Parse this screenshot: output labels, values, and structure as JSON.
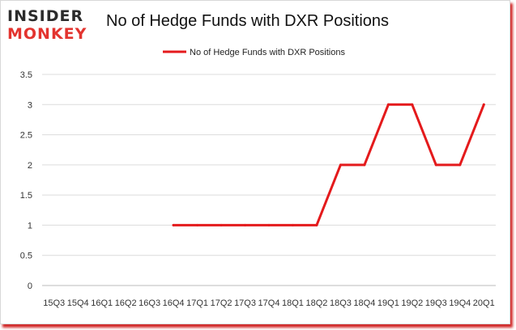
{
  "logo": {
    "line1": "INSIDER",
    "line2": "MONKEY"
  },
  "chart_data": {
    "type": "line",
    "title": "No of Hedge Funds with DXR Positions",
    "xlabel": "",
    "ylabel": "",
    "categories": [
      "15Q3",
      "15Q4",
      "16Q1",
      "16Q2",
      "16Q3",
      "16Q4",
      "17Q1",
      "17Q2",
      "17Q3",
      "17Q4",
      "18Q1",
      "18Q2",
      "18Q3",
      "18Q4",
      "19Q1",
      "19Q2",
      "19Q3",
      "19Q4",
      "20Q1"
    ],
    "series": [
      {
        "name": "No of Hedge Funds with DXR Positions",
        "color": "#e41a1c",
        "values": [
          null,
          null,
          null,
          null,
          null,
          1,
          1,
          1,
          1,
          1,
          1,
          1,
          2,
          2,
          3,
          3,
          2,
          2,
          3
        ]
      }
    ],
    "ylim": [
      0,
      3.5
    ],
    "yticks": [
      0,
      0.5,
      1,
      1.5,
      2,
      2.5,
      3,
      3.5
    ],
    "ytick_labels": [
      "0",
      "0.5",
      "1",
      "1.5",
      "2",
      "2.5",
      "3",
      "3.5"
    ],
    "grid": true,
    "legend_position": "top-center"
  }
}
